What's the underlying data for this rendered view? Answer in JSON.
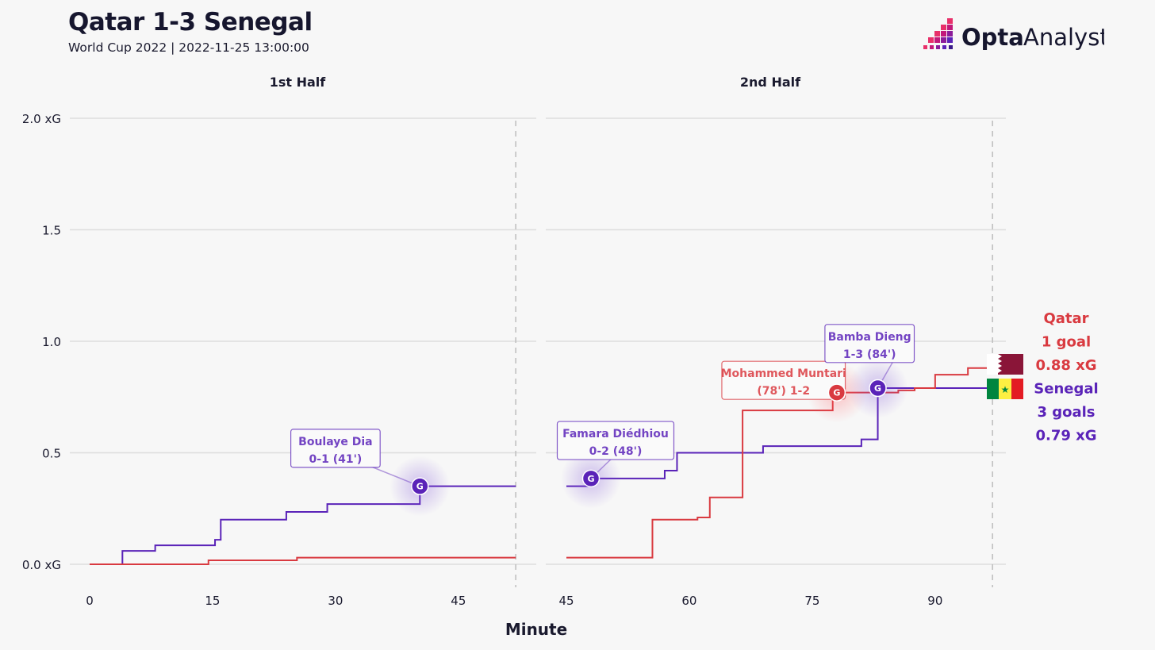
{
  "header": {
    "title": "Qatar 1-3 Senegal",
    "subtitle": "World Cup 2022 | 2022-11-25 13:00:00"
  },
  "logo": {
    "icon": "opta-mark-icon",
    "text_bold": "Opta",
    "text_light": "Analyst"
  },
  "colors": {
    "qatar": "#d93a40",
    "senegal": "#5a23b8",
    "grid": "#dedede",
    "text": "#1a1a2e"
  },
  "chart_data": {
    "type": "line",
    "step": true,
    "xlabel": "Minute",
    "ylabel": "",
    "ylim": [
      0,
      2
    ],
    "y_ticks": [
      {
        "value": 0,
        "label": "0.0 xG"
      },
      {
        "value": 0.5,
        "label": "0.5"
      },
      {
        "value": 1.0,
        "label": "1.0"
      },
      {
        "value": 1.5,
        "label": "1.5"
      },
      {
        "value": 2.0,
        "label": "2.0 xG"
      }
    ],
    "panels": [
      {
        "label": "1st Half",
        "xlim": [
          0,
          53
        ],
        "end_minute": 52,
        "x_ticks": [
          0,
          15,
          30,
          45
        ],
        "series": [
          {
            "key": "senegal",
            "points": [
              [
                0,
                0
              ],
              [
                4,
                0.06
              ],
              [
                8,
                0.085
              ],
              [
                15.3,
                0.11
              ],
              [
                16,
                0.2
              ],
              [
                24,
                0.235
              ],
              [
                29,
                0.27
              ],
              [
                40.3,
                0.35
              ],
              [
                52,
                0.35
              ]
            ]
          },
          {
            "key": "qatar",
            "points": [
              [
                0,
                0
              ],
              [
                14.5,
                0.018
              ],
              [
                25.3,
                0.03
              ],
              [
                52,
                0.03
              ]
            ]
          }
        ],
        "goals": [
          {
            "team": "senegal",
            "minute": 40.3,
            "xg": 0.35,
            "text1": "Boulaye Dia",
            "text2": "0-1 (41')",
            "label_x": 30,
            "label_y": 0.52
          }
        ]
      },
      {
        "label": "2nd Half",
        "xlim": [
          45,
          101
        ],
        "end_minute": 97,
        "x_ticks": [
          45,
          60,
          75,
          90
        ],
        "series": [
          {
            "key": "senegal",
            "points": [
              [
                45,
                0.35
              ],
              [
                48,
                0.385
              ],
              [
                57,
                0.42
              ],
              [
                58.5,
                0.5
              ],
              [
                69,
                0.53
              ],
              [
                81,
                0.56
              ],
              [
                83,
                0.79
              ],
              [
                97,
                0.79
              ]
            ]
          },
          {
            "key": "qatar",
            "points": [
              [
                45,
                0.03
              ],
              [
                55.5,
                0.2
              ],
              [
                61,
                0.21
              ],
              [
                62.5,
                0.3
              ],
              [
                66.5,
                0.69
              ],
              [
                77.5,
                0.77
              ],
              [
                85.5,
                0.78
              ],
              [
                87.5,
                0.79
              ],
              [
                90,
                0.85
              ],
              [
                94,
                0.88
              ],
              [
                97,
                0.88
              ]
            ]
          }
        ],
        "goals": [
          {
            "team": "senegal",
            "minute": 48,
            "xg": 0.385,
            "text1": "Famara Diédhiou",
            "text2": "0-2 (48')",
            "label_x": 51,
            "label_y": 0.555
          },
          {
            "team": "qatar",
            "minute": 78,
            "xg": 0.77,
            "text1": "Mohammed Muntari",
            "text2": "(78') 1-2",
            "label_x": 71.5,
            "label_y": 0.825
          },
          {
            "team": "senegal",
            "minute": 83,
            "xg": 0.79,
            "text1": "Bamba Dieng",
            "text2": "1-3 (84')",
            "label_x": 82,
            "label_y": 0.99
          }
        ]
      }
    ],
    "goal_marker_text": "G",
    "summary": [
      {
        "team": "qatar",
        "flag": "qatar-flag-icon",
        "lines": [
          "Qatar",
          "1 goal",
          "0.88 xG"
        ]
      },
      {
        "team": "senegal",
        "flag": "senegal-flag-icon",
        "lines": [
          "Senegal",
          "3 goals",
          "0.79 xG"
        ]
      }
    ]
  }
}
